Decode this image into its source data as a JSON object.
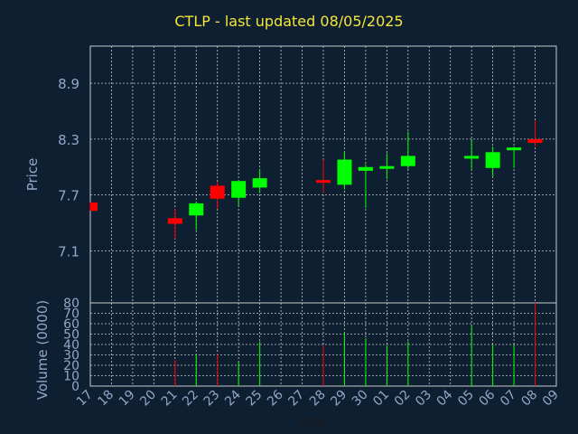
{
  "colors": {
    "background": "#0f1f32",
    "grid": "#c8c8c8",
    "axis_text": "#8fa8c8",
    "title": "#f5e63a",
    "up": "#00ff00",
    "down": "#ff0000"
  },
  "chart_data": {
    "type": "candlestick",
    "title": "CTLP - last updated 08/05/2025",
    "xlabel": "Day",
    "price_ylabel": "Price",
    "volume_ylabel": "Volume (0000)",
    "price_ylim": [
      6.54,
      9.3
    ],
    "price_ticks": [
      7.1,
      7.7,
      8.3,
      8.9
    ],
    "price_tick_labels": [
      "7.1",
      "7.7",
      "8.3",
      "8.9"
    ],
    "volume_ylim": [
      0,
      80
    ],
    "volume_ticks": [
      0,
      10,
      20,
      30,
      40,
      50,
      60,
      70,
      80
    ],
    "volume_tick_labels": [
      "0",
      "10",
      "20",
      "30",
      "40",
      "50",
      "60",
      "70",
      "80"
    ],
    "x_tick_labels": [
      "17",
      "18",
      "19",
      "20",
      "21",
      "22",
      "23",
      "24",
      "25",
      "26",
      "27",
      "28",
      "29",
      "30",
      "01",
      "02",
      "03",
      "04",
      "05",
      "06",
      "07",
      "08",
      "09"
    ],
    "grid": true,
    "candles": [
      {
        "day": "17",
        "open": 7.62,
        "high": 7.62,
        "low": 7.53,
        "close": 7.53,
        "volume": null
      },
      {
        "day": "21",
        "open": 7.45,
        "high": 7.55,
        "low": 7.23,
        "close": 7.39,
        "volume": 25
      },
      {
        "day": "22",
        "open": 7.48,
        "high": 7.63,
        "low": 7.32,
        "close": 7.61,
        "volume": 31
      },
      {
        "day": "23",
        "open": 7.8,
        "high": 7.84,
        "low": 7.55,
        "close": 7.66,
        "volume": 31
      },
      {
        "day": "24",
        "open": 7.67,
        "high": 7.86,
        "low": 7.58,
        "close": 7.85,
        "volume": 23
      },
      {
        "day": "25",
        "open": 7.78,
        "high": 7.98,
        "low": 7.72,
        "close": 7.88,
        "volume": 43
      },
      {
        "day": "28",
        "open": 7.86,
        "high": 8.08,
        "low": 7.73,
        "close": 7.84,
        "volume": 39
      },
      {
        "day": "29",
        "open": 7.81,
        "high": 8.17,
        "low": 7.76,
        "close": 8.08,
        "volume": 52
      },
      {
        "day": "30",
        "open": 7.96,
        "high": 8.03,
        "low": 7.56,
        "close": 8.0,
        "volume": 46
      },
      {
        "day": "01",
        "open": 7.99,
        "high": 8.15,
        "low": 7.87,
        "close": 8.01,
        "volume": 39
      },
      {
        "day": "02",
        "open": 8.01,
        "high": 8.38,
        "low": 7.98,
        "close": 8.12,
        "volume": 43
      },
      {
        "day": "05",
        "open": 8.1,
        "high": 8.3,
        "low": 7.98,
        "close": 8.12,
        "volume": 58
      },
      {
        "day": "06",
        "open": 7.99,
        "high": 8.22,
        "low": 7.9,
        "close": 8.16,
        "volume": 40
      },
      {
        "day": "07",
        "open": 8.19,
        "high": 8.22,
        "low": 7.99,
        "close": 8.21,
        "volume": 40
      },
      {
        "day": "08",
        "open": 8.3,
        "high": 8.5,
        "low": 8.22,
        "close": 8.26,
        "volume": 80
      }
    ]
  }
}
